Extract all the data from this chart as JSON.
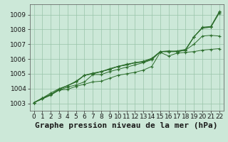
{
  "bg_color": "#cce8d8",
  "grid_color": "#99c4aa",
  "line_color": "#2d6e2d",
  "xlabel": "Graphe pression niveau de la mer (hPa)",
  "xlabel_fontsize": 8,
  "tick_fontsize": 6.5,
  "xlim": [
    -0.5,
    22.5
  ],
  "ylim": [
    1002.5,
    1009.7
  ],
  "xticks": [
    0,
    1,
    2,
    3,
    4,
    5,
    6,
    7,
    8,
    9,
    10,
    11,
    12,
    13,
    14,
    15,
    16,
    17,
    18,
    19,
    20,
    21,
    22
  ],
  "yticks": [
    1003,
    1004,
    1005,
    1006,
    1007,
    1008,
    1009
  ],
  "series": [
    [
      1003.05,
      1003.3,
      1003.6,
      1003.9,
      1003.95,
      1004.15,
      1004.3,
      1004.45,
      1004.5,
      1004.7,
      1004.9,
      1005.0,
      1005.1,
      1005.25,
      1005.5,
      1006.45,
      1006.2,
      1006.4,
      1006.45,
      1006.5,
      1006.6,
      1006.65,
      1006.7
    ],
    [
      1003.05,
      1003.3,
      1003.55,
      1003.9,
      1004.1,
      1004.25,
      1004.45,
      1004.95,
      1004.95,
      1005.15,
      1005.3,
      1005.45,
      1005.6,
      1005.75,
      1005.95,
      1006.5,
      1006.55,
      1006.5,
      1006.6,
      1007.0,
      1007.55,
      1007.6,
      1007.55
    ],
    [
      1003.05,
      1003.35,
      1003.6,
      1003.95,
      1004.2,
      1004.45,
      1004.9,
      1005.0,
      1005.15,
      1005.3,
      1005.5,
      1005.6,
      1005.75,
      1005.8,
      1006.0,
      1006.5,
      1006.5,
      1006.5,
      1006.6,
      1007.5,
      1008.1,
      1008.15,
      1009.1
    ],
    [
      1003.05,
      1003.35,
      1003.6,
      1003.95,
      1004.2,
      1004.45,
      1004.9,
      1005.0,
      1005.15,
      1005.3,
      1005.5,
      1005.6,
      1005.75,
      1005.8,
      1006.0,
      1006.5,
      1006.5,
      1006.5,
      1006.6,
      1007.5,
      1008.1,
      1008.15,
      1009.15
    ],
    [
      1003.05,
      1003.35,
      1003.7,
      1004.0,
      1004.2,
      1004.5,
      1004.9,
      1005.05,
      1005.15,
      1005.35,
      1005.5,
      1005.65,
      1005.75,
      1005.85,
      1006.05,
      1006.5,
      1006.5,
      1006.55,
      1006.65,
      1007.5,
      1008.15,
      1008.2,
      1009.2
    ]
  ]
}
